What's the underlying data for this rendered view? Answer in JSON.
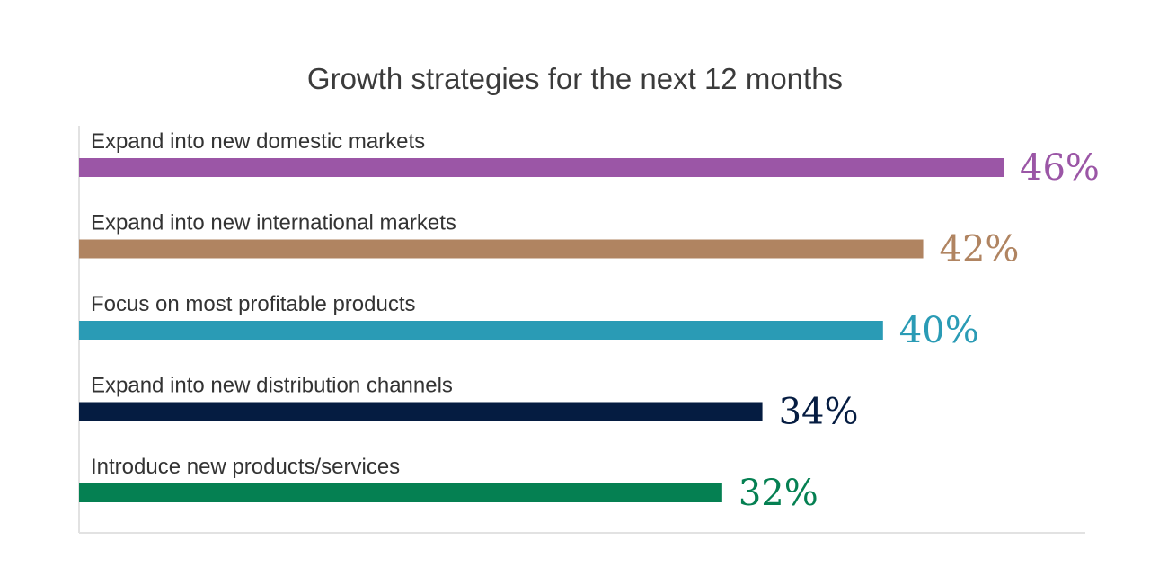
{
  "chart_data": {
    "type": "bar",
    "orientation": "horizontal",
    "title": "Growth strategies for the next 12 months",
    "categories": [
      "Expand into new domestic markets",
      "Expand into new international markets",
      "Focus on most profitable products",
      "Expand into new distribution channels",
      "Introduce new products/services"
    ],
    "values": [
      46,
      42,
      40,
      34,
      32
    ],
    "value_labels": [
      "46%",
      "42%",
      "40%",
      "34%",
      "32%"
    ],
    "colors": [
      "#9b56a6",
      "#b08461",
      "#2a9bb5",
      "#051c41",
      "#058052"
    ],
    "unit": "%",
    "xlim": [
      0,
      50
    ],
    "grid": false,
    "legend": "none"
  }
}
